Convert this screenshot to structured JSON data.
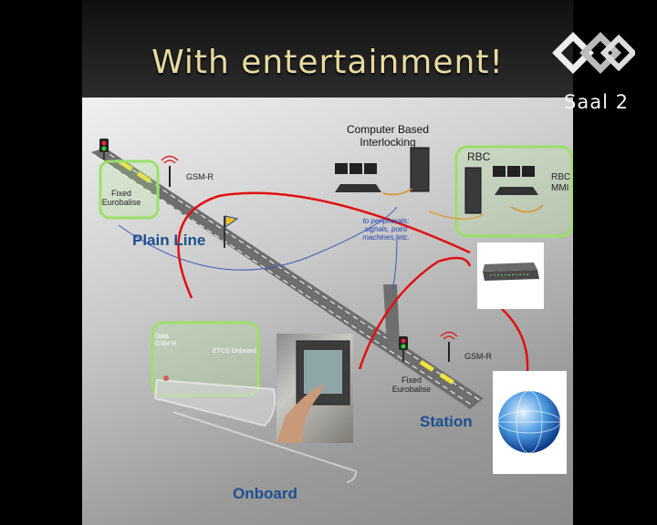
{
  "slide": {
    "title": "With entertainment!"
  },
  "branding": {
    "logo_icon": "saal-logo-icon",
    "room": "Saal 2"
  },
  "diagram": {
    "computer_based_interlocking_line1": "Computer Based",
    "computer_based_interlocking_line2": "Interlocking",
    "rbc": "RBC",
    "rbc_mmi_line1": "RBC",
    "rbc_mmi_line2": "MMI",
    "gsm_r_top": "GSM-R",
    "fixed_eurobalise_top_line1": "Fixed",
    "fixed_eurobalise_top_line2": "Eurobalise",
    "plain_line": "Plain Line",
    "peripherals_line1": "to peripherals:",
    "peripherals_line2": "signals, point",
    "peripherals_line3": "machines, etc.",
    "data_gsm_r_line1": "Data",
    "data_gsm_r_line2": "GSM-R",
    "etcs_onboard": "ETCS Onboard",
    "gsm_r_station": "GSM-R",
    "fixed_eurobalise_station_line1": "Fixed",
    "fixed_eurobalise_station_line2": "Eurobalise",
    "station": "Station",
    "onboard": "Onboard"
  },
  "colors": {
    "title": "#e9d9a0",
    "label_blue": "#1d4f8f",
    "green_box": "#9be06a",
    "red_link": "#e01010"
  }
}
